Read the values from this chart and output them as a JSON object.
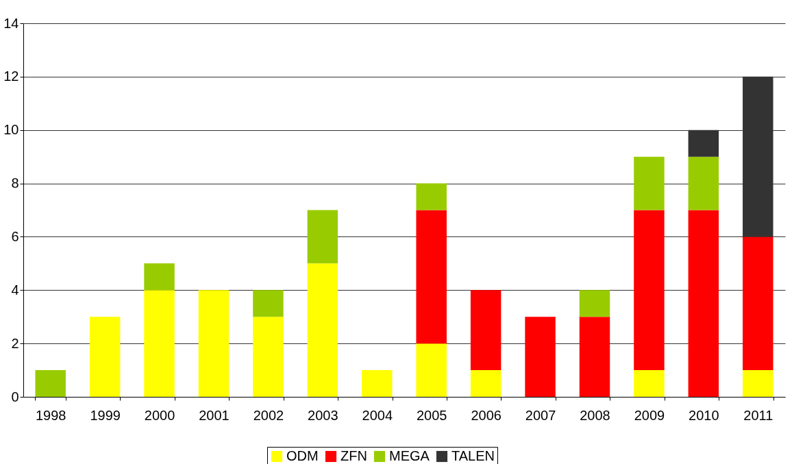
{
  "chart_data": {
    "type": "bar",
    "stacked": true,
    "categories": [
      "1998",
      "1999",
      "2000",
      "2001",
      "2002",
      "2003",
      "2004",
      "2005",
      "2006",
      "2007",
      "2008",
      "2009",
      "2010",
      "2011"
    ],
    "series": [
      {
        "name": "ODM",
        "color": "#ffff00",
        "values": [
          null,
          3,
          4,
          4,
          3,
          5,
          1,
          2,
          1,
          null,
          null,
          1,
          null,
          1
        ]
      },
      {
        "name": "ZFN",
        "color": "#ff0000",
        "values": [
          null,
          null,
          null,
          null,
          null,
          null,
          null,
          5,
          3,
          3,
          3,
          6,
          7,
          5
        ]
      },
      {
        "name": "MEGA",
        "color": "#99cc00",
        "values": [
          1,
          null,
          1,
          null,
          1,
          2,
          null,
          1,
          null,
          null,
          1,
          2,
          2,
          null
        ]
      },
      {
        "name": "TALEN",
        "color": "#333333",
        "values": [
          null,
          null,
          null,
          null,
          null,
          null,
          null,
          null,
          null,
          null,
          null,
          null,
          1,
          6
        ]
      }
    ],
    "ylim": [
      0,
      14
    ],
    "yticks": [
      0,
      2,
      4,
      6,
      8,
      10,
      12,
      14
    ],
    "grid": "y",
    "legend": "bottom"
  }
}
